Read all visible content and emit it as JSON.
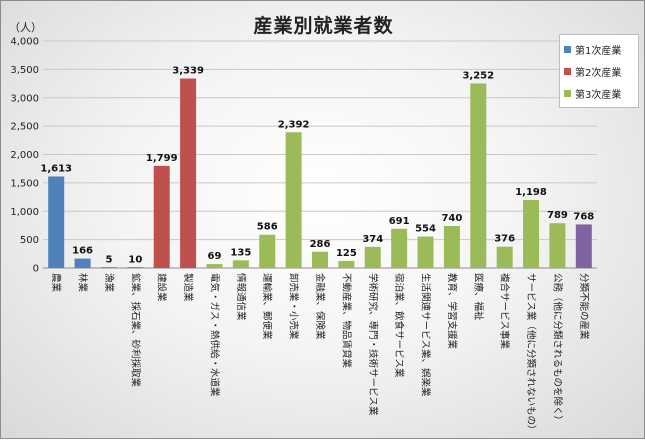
{
  "chart_data": {
    "type": "bar",
    "title": "産業別就業者数",
    "unit_label": "（人）",
    "xlabel": "",
    "ylabel": "",
    "ylim": [
      0,
      4000
    ],
    "yticks": [
      "0",
      "500",
      "1,000",
      "1,500",
      "2,000",
      "2,500",
      "3,000",
      "3,500",
      "4,000"
    ],
    "grid": true,
    "legend_position": "top-right",
    "groups": [
      {
        "name": "第1次産業",
        "color": "#4f81bd"
      },
      {
        "name": "第2次産業",
        "color": "#c0504d"
      },
      {
        "name": "第3次産業",
        "color": "#9bbb59"
      }
    ],
    "other_color": "#8064a2",
    "categories": [
      {
        "name": "農業",
        "value": 1613,
        "label": "1,613",
        "group": 0
      },
      {
        "name": "林業",
        "value": 166,
        "label": "166",
        "group": 0
      },
      {
        "name": "漁業",
        "value": 5,
        "label": "5",
        "group": 0
      },
      {
        "name": "鉱業、採石業、砂利採取業",
        "value": 10,
        "label": "10",
        "group": 1
      },
      {
        "name": "建設業",
        "value": 1799,
        "label": "1,799",
        "group": 1
      },
      {
        "name": "製造業",
        "value": 3339,
        "label": "3,339",
        "group": 1
      },
      {
        "name": "電気・ガス・熱供給・水道業",
        "value": 69,
        "label": "69",
        "group": 2
      },
      {
        "name": "情報通信業",
        "value": 135,
        "label": "135",
        "group": 2
      },
      {
        "name": "運輸業、郵便業",
        "value": 586,
        "label": "586",
        "group": 2
      },
      {
        "name": "卸売業・小売業",
        "value": 2392,
        "label": "2,392",
        "group": 2
      },
      {
        "name": "金融業、保険業",
        "value": 286,
        "label": "286",
        "group": 2
      },
      {
        "name": "不動産業、物品賃貸業",
        "value": 125,
        "label": "125",
        "group": 2
      },
      {
        "name": "学術研究、専門・技術サービス業",
        "value": 374,
        "label": "374",
        "group": 2
      },
      {
        "name": "宿泊業、飲食サービス業",
        "value": 691,
        "label": "691",
        "group": 2
      },
      {
        "name": "生活関連サービス業、娯楽業",
        "value": 554,
        "label": "554",
        "group": 2
      },
      {
        "name": "教育、学習支援業",
        "value": 740,
        "label": "740",
        "group": 2
      },
      {
        "name": "医療、福祉",
        "value": 3252,
        "label": "3,252",
        "group": 2
      },
      {
        "name": "複合サービス事業",
        "value": 376,
        "label": "376",
        "group": 2
      },
      {
        "name": "サービス業（他に分類されないもの）",
        "value": 1198,
        "label": "1,198",
        "group": 2
      },
      {
        "name": "公務（他に分類されるものを除く）",
        "value": 789,
        "label": "789",
        "group": 2
      },
      {
        "name": "分類不能の産業",
        "value": 768,
        "label": "768",
        "group": -1
      }
    ]
  }
}
